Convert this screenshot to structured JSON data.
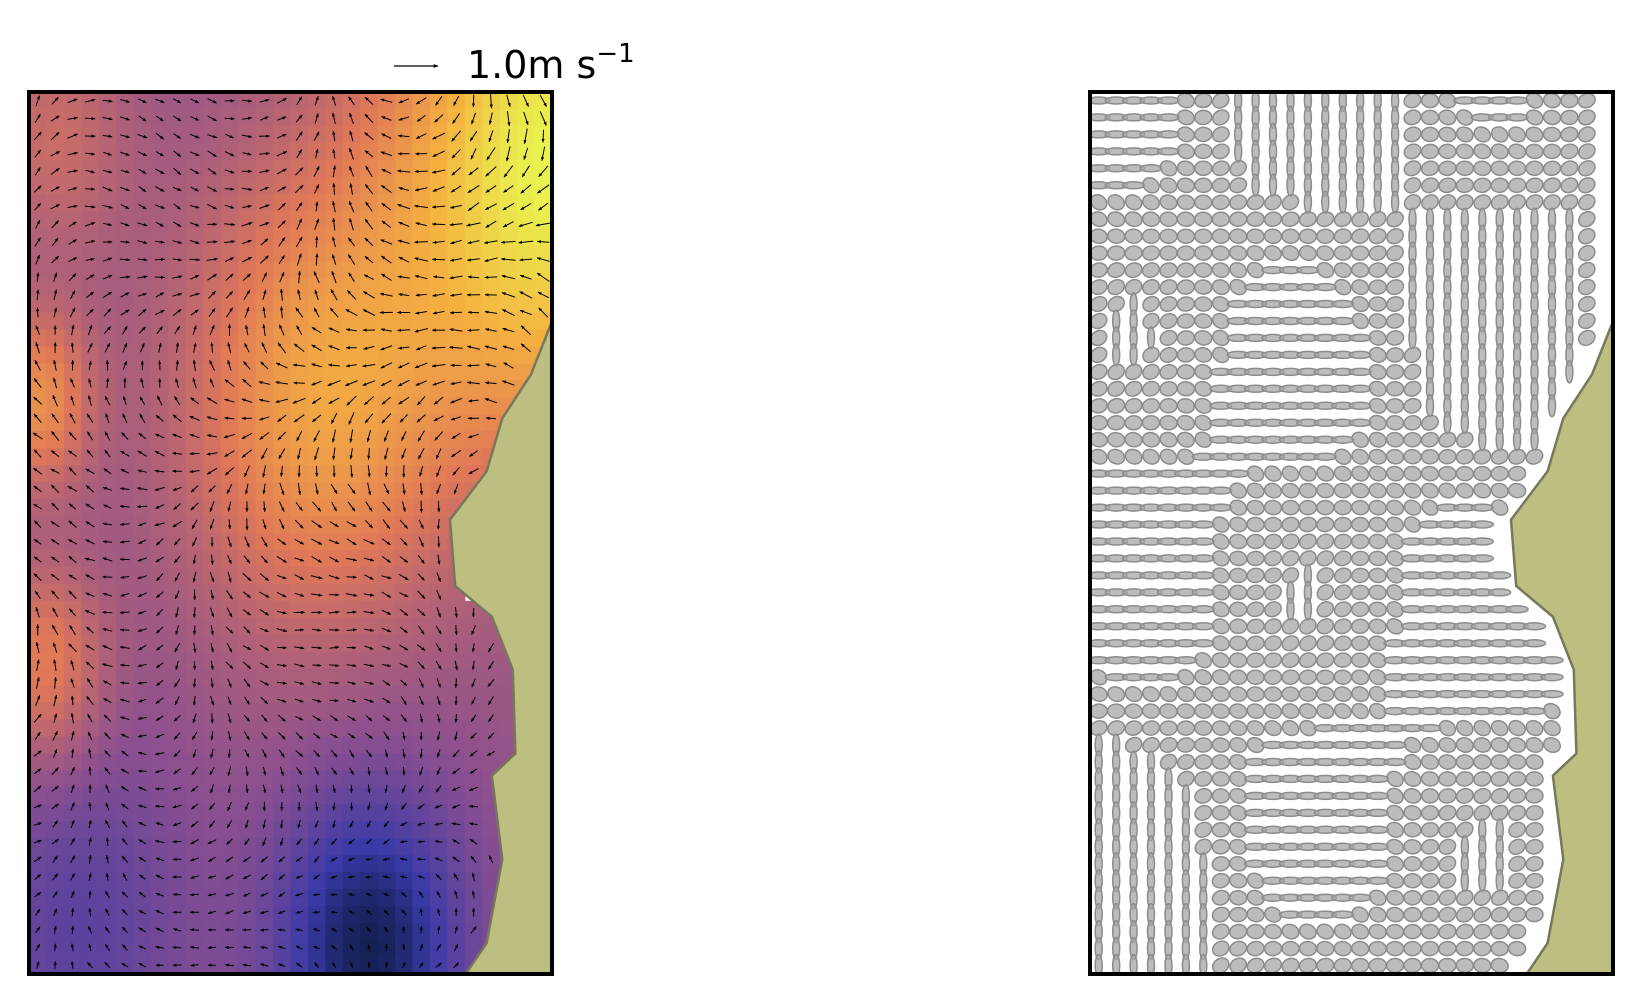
{
  "quiver_key": {
    "label": "1.0m s",
    "exponent": "−1"
  }
}
